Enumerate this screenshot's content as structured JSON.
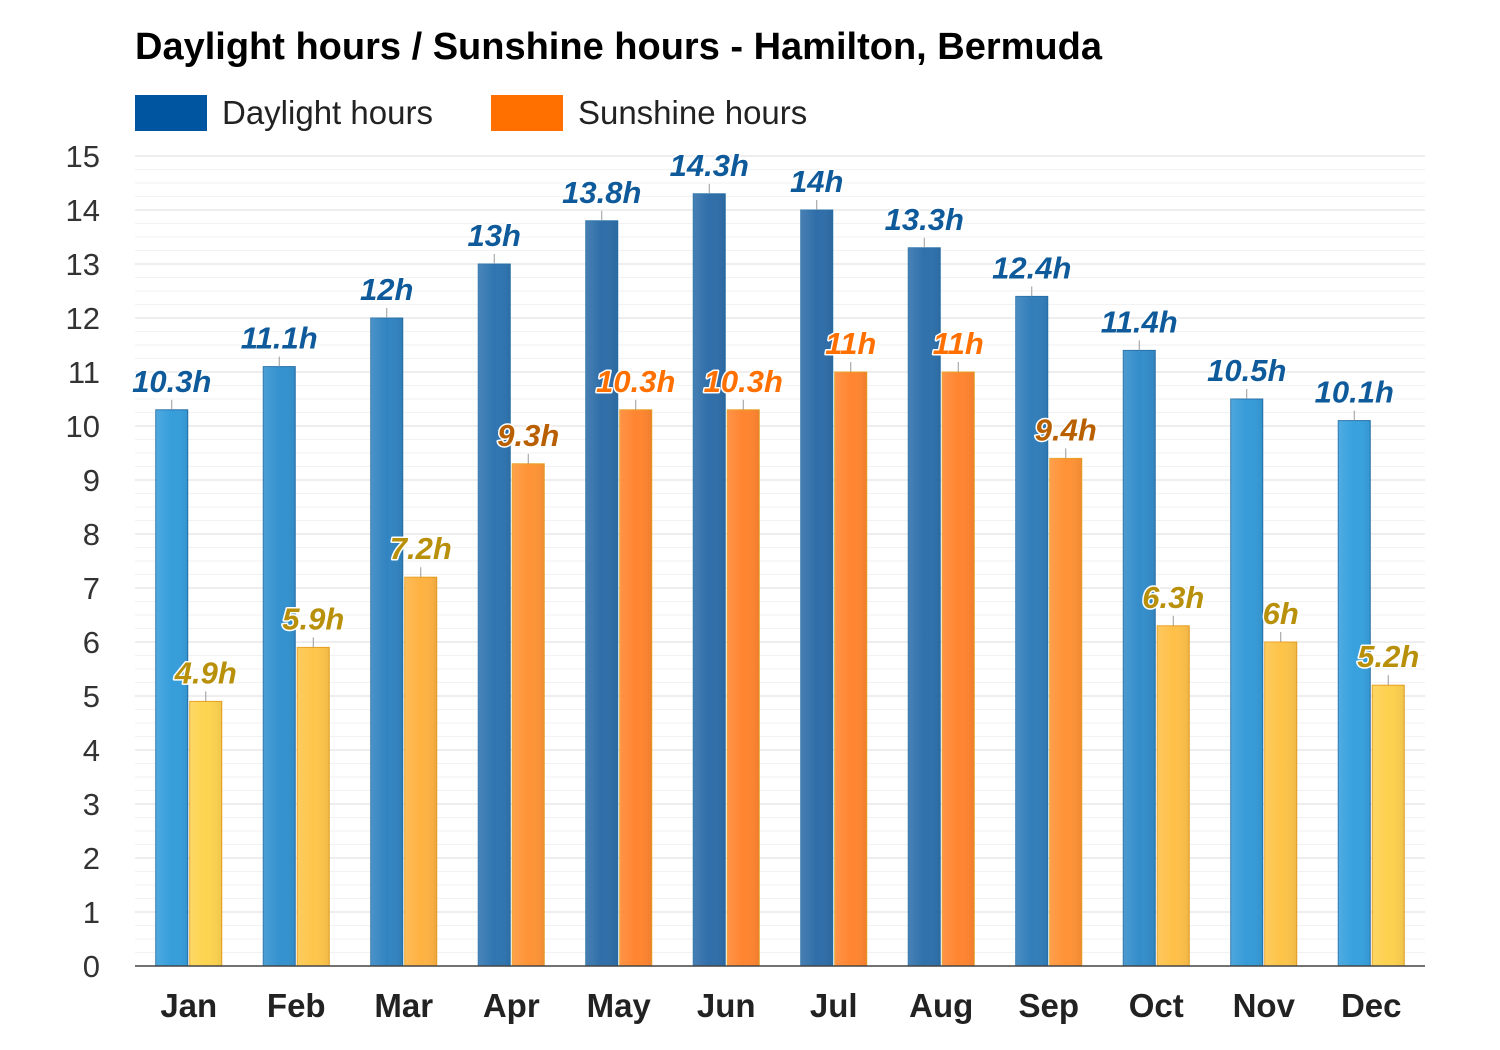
{
  "chart_data": {
    "type": "bar",
    "title": "Daylight hours / Sunshine hours - Hamilton, Bermuda",
    "categories": [
      "Jan",
      "Feb",
      "Mar",
      "Apr",
      "May",
      "Jun",
      "Jul",
      "Aug",
      "Sep",
      "Oct",
      "Nov",
      "Dec"
    ],
    "series": [
      {
        "name": "Daylight hours",
        "color": "#0055A0",
        "values": [
          10.3,
          11.1,
          12,
          13,
          13.8,
          14.3,
          14,
          13.3,
          12.4,
          11.4,
          10.5,
          10.1
        ],
        "labels": [
          "10.3h",
          "11.1h",
          "12h",
          "13h",
          "13.8h",
          "14.3h",
          "14h",
          "13.3h",
          "12.4h",
          "11.4h",
          "10.5h",
          "10.1h"
        ]
      },
      {
        "name": "Sunshine hours",
        "color": "#FF7000",
        "values": [
          4.9,
          5.9,
          7.2,
          9.3,
          10.3,
          10.3,
          11,
          11,
          9.4,
          6.3,
          6,
          5.2
        ],
        "labels": [
          "4.9h",
          "5.9h",
          "7.2h",
          "9.3h",
          "10.3h",
          "10.3h",
          "11h",
          "11h",
          "9.4h",
          "6.3h",
          "6h",
          "5.2h"
        ]
      }
    ],
    "yticks": [
      "0",
      "1",
      "2",
      "3",
      "4",
      "5",
      "6",
      "7",
      "8",
      "9",
      "10",
      "11",
      "12",
      "13",
      "14",
      "15"
    ],
    "ylim": [
      0,
      15
    ],
    "xlabel": "",
    "ylabel": "",
    "legend_position": "top-left",
    "grid": true
  }
}
